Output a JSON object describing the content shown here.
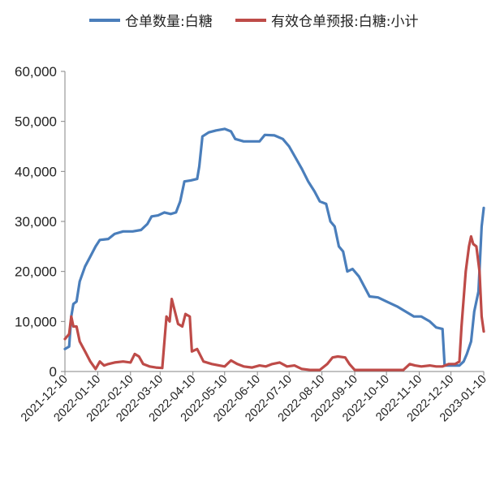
{
  "legend": [
    {
      "label": "仓单数量:白糖",
      "color": "#4a7ebb"
    },
    {
      "label": "有效仓单预报:白糖:小计",
      "color": "#be4b48"
    }
  ],
  "chart_data": {
    "type": "line",
    "title": "",
    "xlabel": "",
    "ylabel": "",
    "ylim": [
      0,
      60000
    ],
    "yticks": [
      "0",
      "10,000",
      "20,000",
      "30,000",
      "40,000",
      "50,000",
      "60,000"
    ],
    "xlim": [
      "2021-12-10",
      "2023-01-10"
    ],
    "xticks": [
      "2021-12-10",
      "2022-01-10",
      "2022-02-10",
      "2022-03-10",
      "2022-04-10",
      "2022-05-10",
      "2022-06-10",
      "2022-07-10",
      "2022-08-10",
      "2022-09-10",
      "2022-10-10",
      "2022-11-10",
      "2022-12-10",
      "2023-01-10"
    ],
    "grid": false,
    "legend_position": "top",
    "series": [
      {
        "name": "仓单数量:白糖",
        "color": "#4a7ebb",
        "points": [
          [
            "2021-12-10",
            4500
          ],
          [
            "2021-12-14",
            5000
          ],
          [
            "2021-12-16",
            11000
          ],
          [
            "2021-12-18",
            13500
          ],
          [
            "2021-12-21",
            14000
          ],
          [
            "2021-12-24",
            18000
          ],
          [
            "2021-12-29",
            21000
          ],
          [
            "2022-01-03",
            23000
          ],
          [
            "2022-01-08",
            25000
          ],
          [
            "2022-01-12",
            26300
          ],
          [
            "2022-01-20",
            26500
          ],
          [
            "2022-01-26",
            27500
          ],
          [
            "2022-02-03",
            28000
          ],
          [
            "2022-02-12",
            28000
          ],
          [
            "2022-02-20",
            28300
          ],
          [
            "2022-02-26",
            29500
          ],
          [
            "2022-03-02",
            31000
          ],
          [
            "2022-03-08",
            31200
          ],
          [
            "2022-03-14",
            31800
          ],
          [
            "2022-03-20",
            31500
          ],
          [
            "2022-03-25",
            31800
          ],
          [
            "2022-03-29",
            34000
          ],
          [
            "2022-04-02",
            38000
          ],
          [
            "2022-04-08",
            38200
          ],
          [
            "2022-04-14",
            38500
          ],
          [
            "2022-04-16",
            41000
          ],
          [
            "2022-04-19",
            47000
          ],
          [
            "2022-04-25",
            47800
          ],
          [
            "2022-05-02",
            48200
          ],
          [
            "2022-05-10",
            48500
          ],
          [
            "2022-05-16",
            48000
          ],
          [
            "2022-05-20",
            46500
          ],
          [
            "2022-05-28",
            46000
          ],
          [
            "2022-06-05",
            46000
          ],
          [
            "2022-06-12",
            46000
          ],
          [
            "2022-06-17",
            47300
          ],
          [
            "2022-06-26",
            47200
          ],
          [
            "2022-07-04",
            46500
          ],
          [
            "2022-07-10",
            45000
          ],
          [
            "2022-07-18",
            42000
          ],
          [
            "2022-07-22",
            40500
          ],
          [
            "2022-07-28",
            38000
          ],
          [
            "2022-08-03",
            36000
          ],
          [
            "2022-08-08",
            34000
          ],
          [
            "2022-08-14",
            33500
          ],
          [
            "2022-08-18",
            30000
          ],
          [
            "2022-08-22",
            29000
          ],
          [
            "2022-08-26",
            25000
          ],
          [
            "2022-08-30",
            24000
          ],
          [
            "2022-09-03",
            20000
          ],
          [
            "2022-09-08",
            20500
          ],
          [
            "2022-09-14",
            19000
          ],
          [
            "2022-09-19",
            17000
          ],
          [
            "2022-09-24",
            15000
          ],
          [
            "2022-10-02",
            14800
          ],
          [
            "2022-10-10",
            14000
          ],
          [
            "2022-10-20",
            13000
          ],
          [
            "2022-10-28",
            12000
          ],
          [
            "2022-11-05",
            11000
          ],
          [
            "2022-11-12",
            11000
          ],
          [
            "2022-11-20",
            10000
          ],
          [
            "2022-11-26",
            8800
          ],
          [
            "2022-12-02",
            8500
          ],
          [
            "2022-12-04",
            1200
          ],
          [
            "2022-12-10",
            1200
          ],
          [
            "2022-12-18",
            1200
          ],
          [
            "2022-12-22",
            2000
          ],
          [
            "2022-12-25",
            3500
          ],
          [
            "2022-12-29",
            6000
          ],
          [
            "2023-01-01",
            12000
          ],
          [
            "2023-01-05",
            16000
          ],
          [
            "2023-01-08",
            29000
          ],
          [
            "2023-01-10",
            32700
          ]
        ]
      },
      {
        "name": "有效仓单预报:白糖:小计",
        "color": "#be4b48",
        "points": [
          [
            "2021-12-10",
            6500
          ],
          [
            "2021-12-14",
            7500
          ],
          [
            "2021-12-16",
            11000
          ],
          [
            "2021-12-18",
            9000
          ],
          [
            "2021-12-21",
            9000
          ],
          [
            "2021-12-24",
            6000
          ],
          [
            "2021-12-29",
            4000
          ],
          [
            "2022-01-03",
            2000
          ],
          [
            "2022-01-08",
            500
          ],
          [
            "2022-01-12",
            2000
          ],
          [
            "2022-01-16",
            1200
          ],
          [
            "2022-01-20",
            1500
          ],
          [
            "2022-01-26",
            1800
          ],
          [
            "2022-02-03",
            2000
          ],
          [
            "2022-02-10",
            1800
          ],
          [
            "2022-02-14",
            3500
          ],
          [
            "2022-02-18",
            3000
          ],
          [
            "2022-02-22",
            1500
          ],
          [
            "2022-02-28",
            1000
          ],
          [
            "2022-03-06",
            800
          ],
          [
            "2022-03-12",
            700
          ],
          [
            "2022-03-16",
            11000
          ],
          [
            "2022-03-19",
            10000
          ],
          [
            "2022-03-21",
            14500
          ],
          [
            "2022-03-24",
            12000
          ],
          [
            "2022-03-27",
            9500
          ],
          [
            "2022-03-31",
            9000
          ],
          [
            "2022-04-03",
            11500
          ],
          [
            "2022-04-07",
            11000
          ],
          [
            "2022-04-09",
            4000
          ],
          [
            "2022-04-14",
            4500
          ],
          [
            "2022-04-20",
            2000
          ],
          [
            "2022-04-28",
            1500
          ],
          [
            "2022-05-05",
            1200
          ],
          [
            "2022-05-10",
            1000
          ],
          [
            "2022-05-16",
            2200
          ],
          [
            "2022-05-22",
            1500
          ],
          [
            "2022-05-28",
            1000
          ],
          [
            "2022-06-05",
            800
          ],
          [
            "2022-06-12",
            1200
          ],
          [
            "2022-06-18",
            1000
          ],
          [
            "2022-06-24",
            1500
          ],
          [
            "2022-07-01",
            1800
          ],
          [
            "2022-07-08",
            1000
          ],
          [
            "2022-07-15",
            1200
          ],
          [
            "2022-07-22",
            500
          ],
          [
            "2022-07-30",
            300
          ],
          [
            "2022-08-08",
            300
          ],
          [
            "2022-08-15",
            1500
          ],
          [
            "2022-08-20",
            2800
          ],
          [
            "2022-08-25",
            3000
          ],
          [
            "2022-09-01",
            2800
          ],
          [
            "2022-09-05",
            1500
          ],
          [
            "2022-09-10",
            300
          ],
          [
            "2022-09-20",
            300
          ],
          [
            "2022-10-05",
            300
          ],
          [
            "2022-10-20",
            300
          ],
          [
            "2022-10-26",
            300
          ],
          [
            "2022-11-01",
            1500
          ],
          [
            "2022-11-06",
            1200
          ],
          [
            "2022-11-12",
            1000
          ],
          [
            "2022-11-20",
            1200
          ],
          [
            "2022-11-26",
            1000
          ],
          [
            "2022-12-02",
            1000
          ],
          [
            "2022-12-08",
            1500
          ],
          [
            "2022-12-14",
            1500
          ],
          [
            "2022-12-18",
            2000
          ],
          [
            "2022-12-20",
            9000
          ],
          [
            "2022-12-24",
            20000
          ],
          [
            "2022-12-27",
            25000
          ],
          [
            "2022-12-29",
            27000
          ],
          [
            "2022-12-31",
            25500
          ],
          [
            "2023-01-03",
            25000
          ],
          [
            "2023-01-06",
            20000
          ],
          [
            "2023-01-08",
            11000
          ],
          [
            "2023-01-10",
            8000
          ]
        ]
      }
    ]
  }
}
